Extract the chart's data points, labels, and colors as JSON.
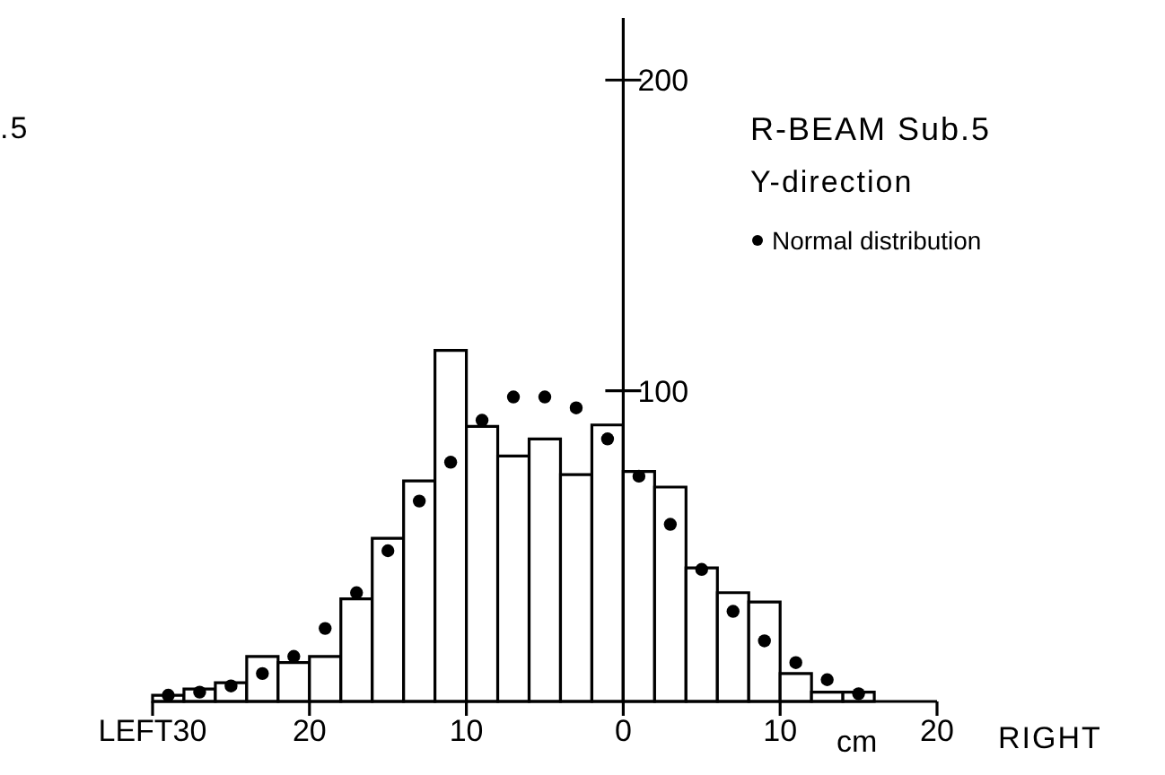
{
  "chart_data": {
    "type": "histogram",
    "title": "R-BEAM Sub.5",
    "subtitle": "Y-direction",
    "xlabel": "cm",
    "annotations": [
      ".5",
      "RIGHT"
    ],
    "bins": [
      -30,
      -28,
      -26,
      -24,
      -22,
      -20,
      -18,
      -16,
      -14,
      -12,
      -10,
      -8,
      -6,
      -4,
      -2,
      0,
      2,
      4,
      6,
      8,
      10,
      12,
      14,
      16
    ],
    "values": [
      2,
      4,
      6,
      14.5,
      12.5,
      14.5,
      33,
      52.5,
      71,
      113,
      88.5,
      79,
      84.5,
      73,
      89,
      74,
      69,
      43,
      35,
      32,
      9,
      3,
      3
    ],
    "color": "#ffffff",
    "series": [
      {
        "name": "Normal distribution",
        "type": "scatter",
        "color": "#000000",
        "x": [
          -29,
          -27,
          -25,
          -23,
          -21,
          -19,
          -17,
          -15,
          -13,
          -11,
          -9,
          -7,
          -5,
          -3,
          -1,
          1,
          3,
          5,
          7,
          9,
          11,
          13,
          15
        ],
        "values": [
          2,
          3,
          5,
          9,
          14.5,
          23.5,
          35,
          48.5,
          64.5,
          77,
          90.5,
          98,
          98,
          94.5,
          84.5,
          72.5,
          57,
          42.5,
          29,
          19.5,
          12.5,
          7,
          2.5
        ]
      }
    ],
    "xlim": [
      -30,
      20
    ],
    "xticks": [
      {
        "value": -30,
        "label": "LEFT30"
      },
      {
        "value": -20,
        "label": "20"
      },
      {
        "value": -10,
        "label": "10"
      },
      0,
      {
        "value": 10,
        "label": "10"
      },
      {
        "value": 20,
        "label": "20"
      }
    ],
    "ylim": [
      0,
      220
    ],
    "yticks": [
      100,
      200
    ],
    "legend": "top right",
    "marker": "circle"
  }
}
